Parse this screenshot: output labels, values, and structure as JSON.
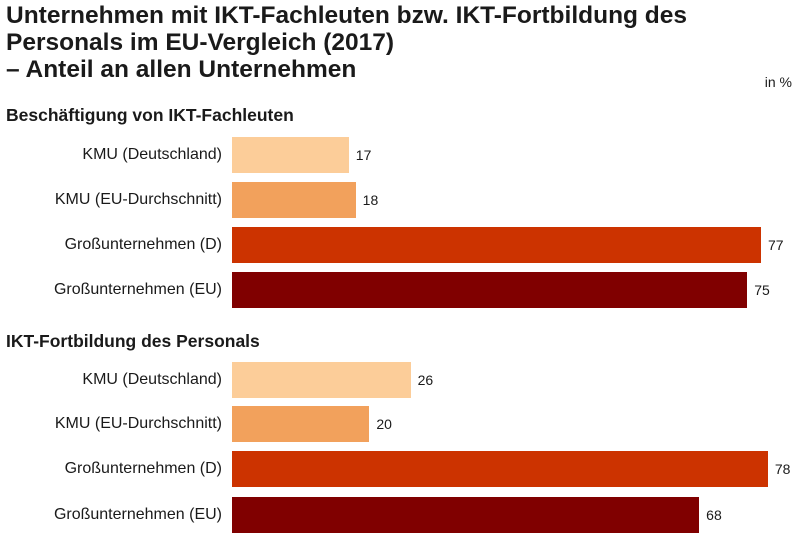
{
  "title_lines": [
    "Unternehmen mit IKT-Fachleuten bzw. IKT-Fortbildung des",
    "Personals im EU-Vergleich (2017)",
    "– Anteil an allen Unternehmen"
  ],
  "unit": "in %",
  "colors": {
    "kmu_de": "#fccd99",
    "kmu_eu": "#f2a15c",
    "gross_d": "#cc3300",
    "gross_eu": "#800000"
  },
  "chart_data": {
    "type": "bar",
    "orientation": "horizontal",
    "title": "Unternehmen mit IKT-Fachleuten bzw. IKT-Fortbildung des Personals im EU-Vergleich (2017) – Anteil an allen Unternehmen",
    "unit": "in %",
    "categories": [
      "KMU (Deutschland)",
      "KMU (EU-Durchschnitt)",
      "Großunternehmen (D)",
      "Großunternehmen (EU)"
    ],
    "xlim": [
      0,
      80
    ],
    "groups": [
      {
        "name": "Beschäftigung von IKT-Fachleuten",
        "values": [
          17,
          18,
          77,
          75
        ]
      },
      {
        "name": "IKT-Fortbildung des Personals",
        "values": [
          26,
          20,
          78,
          68
        ]
      }
    ]
  }
}
